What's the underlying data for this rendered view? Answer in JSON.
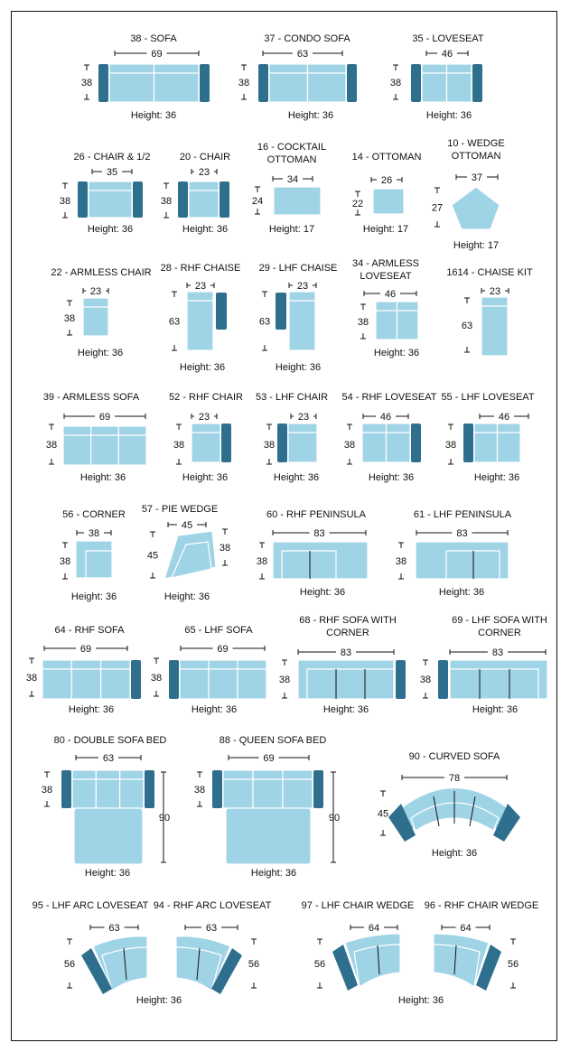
{
  "colors": {
    "fabric": "#9fd3e6",
    "arm": "#2e6f8e",
    "line": "#111111",
    "border": "#111111"
  },
  "items": [
    {
      "id": "sofa38",
      "label": [
        "38 - SOFA"
      ],
      "width": "69",
      "depth": "38",
      "height": "Height: 36"
    },
    {
      "id": "condo37",
      "label": [
        "37 - CONDO SOFA"
      ],
      "width": "63",
      "depth": "38",
      "height": "Height: 36"
    },
    {
      "id": "love35",
      "label": [
        "35 - LOVESEAT"
      ],
      "width": "46",
      "depth": "38",
      "height": "Height: 36"
    },
    {
      "id": "chairhalf26",
      "label": [
        "26 - CHAIR & 1/2"
      ],
      "width": "35",
      "depth": "38",
      "height": "Height: 36"
    },
    {
      "id": "chair20",
      "label": [
        "20 - CHAIR"
      ],
      "width": "23",
      "depth": "38",
      "height": "Height: 36"
    },
    {
      "id": "cocktail16",
      "label": [
        "16 - COCKTAIL",
        "OTTOMAN"
      ],
      "width": "34",
      "depth": "24",
      "height": "Height: 17"
    },
    {
      "id": "ottoman14",
      "label": [
        "14 - OTTOMAN"
      ],
      "width": "26",
      "depth": "22",
      "height": "Height: 17"
    },
    {
      "id": "wedge10",
      "label": [
        "10 - WEDGE",
        "OTTOMAN"
      ],
      "width": "37",
      "depth": "27",
      "height": "Height: 17"
    },
    {
      "id": "armless22",
      "label": [
        "22 - ARMLESS CHAIR"
      ],
      "width": "23",
      "depth": "38",
      "height": "Height: 36"
    },
    {
      "id": "rhfchaise28",
      "label": [
        "28 - RHF CHAISE"
      ],
      "width": "23",
      "depth": "63",
      "height": "Height: 36"
    },
    {
      "id": "lhfchaise29",
      "label": [
        "29 - LHF CHAISE"
      ],
      "width": "23",
      "depth": "63",
      "height": "Height: 36"
    },
    {
      "id": "armlove34",
      "label": [
        "34 - ARMLESS",
        "LOVESEAT"
      ],
      "width": "46",
      "depth": "38",
      "height": "Height: 36"
    },
    {
      "id": "chaisekit1614",
      "label": [
        "1614 - CHAISE KIT"
      ],
      "width": "23",
      "depth": "63",
      "height": ""
    },
    {
      "id": "armsofa39",
      "label": [
        "39 - ARMLESS SOFA"
      ],
      "width": "69",
      "depth": "38",
      "height": "Height: 36"
    },
    {
      "id": "rhfchair52",
      "label": [
        "52 - RHF CHAIR"
      ],
      "width": "23",
      "depth": "38",
      "height": "Height: 36"
    },
    {
      "id": "lhfchair53",
      "label": [
        "53 - LHF CHAIR"
      ],
      "width": "23",
      "depth": "38",
      "height": "Height: 36"
    },
    {
      "id": "rhflove54",
      "label": [
        "54 - RHF LOVESEAT"
      ],
      "width": "46",
      "depth": "38",
      "height": "Height: 36"
    },
    {
      "id": "lhflove55",
      "label": [
        "55 - LHF LOVESEAT"
      ],
      "width": "46",
      "depth": "38",
      "height": "Height: 36"
    },
    {
      "id": "corner56",
      "label": [
        "56 - CORNER"
      ],
      "width": "38",
      "depth": "38",
      "height": "Height: 36"
    },
    {
      "id": "pie57",
      "label": [
        "57 - PIE WEDGE"
      ],
      "width": "45",
      "depth": "45",
      "depth2": "38",
      "height": "Height: 36"
    },
    {
      "id": "rhfpen60",
      "label": [
        "60 - RHF PENINSULA"
      ],
      "width": "83",
      "depth": "38",
      "height": "Height: 36"
    },
    {
      "id": "lhfpen61",
      "label": [
        "61 - LHF PENINSULA"
      ],
      "width": "83",
      "depth": "38",
      "height": "Height: 36"
    },
    {
      "id": "rhfsofa64",
      "label": [
        "64 - RHF SOFA"
      ],
      "width": "69",
      "depth": "38",
      "height": "Height: 36"
    },
    {
      "id": "lhfsofa65",
      "label": [
        "65 - LHF SOFA"
      ],
      "width": "69",
      "depth": "38",
      "height": "Height: 36"
    },
    {
      "id": "rhfcorner68",
      "label": [
        "68 - RHF SOFA WITH",
        "CORNER"
      ],
      "width": "83",
      "depth": "38",
      "height": "Height: 36"
    },
    {
      "id": "lhfcorner69",
      "label": [
        "69 - LHF SOFA WITH",
        "CORNER"
      ],
      "width": "83",
      "depth": "38",
      "height": "Height: 36"
    },
    {
      "id": "doublebed80",
      "label": [
        "80 - DOUBLE SOFA BED"
      ],
      "width": "63",
      "depth": "38",
      "depth2": "90",
      "height": "Height: 36"
    },
    {
      "id": "queenbed88",
      "label": [
        "88 - QUEEN SOFA BED"
      ],
      "width": "69",
      "depth": "38",
      "depth2": "90",
      "height": "Height: 36"
    },
    {
      "id": "curved90",
      "label": [
        "90 - CURVED SOFA"
      ],
      "width": "78",
      "depth": "45",
      "height": "Height: 36"
    },
    {
      "id": "lhfarc95",
      "label": [
        "95 - LHF ARC LOVESEAT"
      ],
      "width": "63",
      "depth": "56",
      "height": ""
    },
    {
      "id": "rhfarc94",
      "label": [
        "94 - RHF ARC LOVESEAT"
      ],
      "width": "63",
      "depth": "56",
      "height": ""
    },
    {
      "id": "lhfwedge97",
      "label": [
        "97 - LHF CHAIR WEDGE"
      ],
      "width": "64",
      "depth": "56",
      "height": ""
    },
    {
      "id": "rhfwedge96",
      "label": [
        "96 - RHF CHAIR WEDGE"
      ],
      "width": "64",
      "depth": "56",
      "height": ""
    }
  ],
  "shared_heights": {
    "arc_loveseats": "Height: 36",
    "chair_wedges": "Height: 36"
  }
}
